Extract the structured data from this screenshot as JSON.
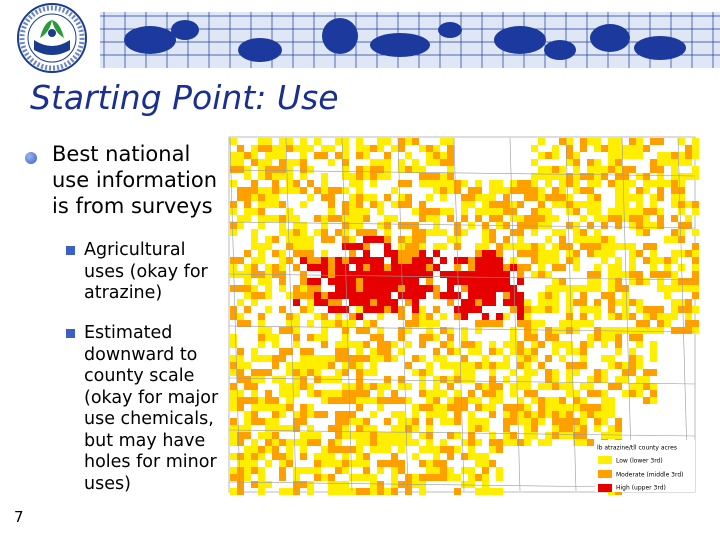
{
  "header": {
    "title": "Starting Point: Use"
  },
  "bullets": [
    {
      "text": "Best national use information is from surveys",
      "sub_bullets": [
        "Agricultural uses (okay for atrazine)",
        "Estimated downward to county scale (okay for major use chemicals, but may have holes for minor uses)"
      ]
    }
  ],
  "map": {
    "legend": {
      "title": "lb atrazine/tll county acres",
      "items": [
        "Low (lower 3rd)",
        "Moderate (middle 3rd)",
        "High (upper 3rd)"
      ]
    }
  },
  "page_number": "7"
}
